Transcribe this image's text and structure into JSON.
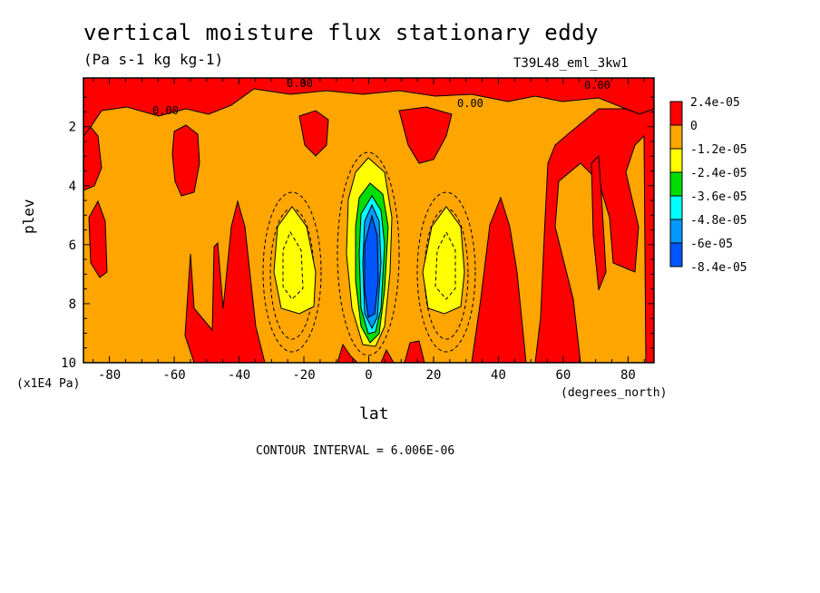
{
  "chart_data": {
    "type": "heatmap",
    "title": "vertical moisture flux stationary eddy",
    "units_label": "(Pa s-1 kg kg-1)",
    "run_label": "T39L48_eml_3kw1",
    "xlabel": "lat",
    "x_unit_label": "(degrees_north)",
    "ylabel": "plev",
    "y_unit_label": "(x1E4 Pa)",
    "xlim": [
      -88,
      88
    ],
    "ylim": [
      10,
      0.35
    ],
    "x_ticks": [
      -80,
      -60,
      -40,
      -20,
      0,
      20,
      40,
      60,
      80
    ],
    "x_tick_labels": [
      "-80",
      "-60",
      "-40",
      "-20",
      "0",
      "20",
      "40",
      "60",
      "80"
    ],
    "y_ticks": [
      2,
      4,
      6,
      8,
      10
    ],
    "y_tick_labels": [
      "2",
      "4",
      "6",
      "8",
      "10"
    ],
    "contour_interval_text": "CONTOUR INTERVAL = 6.006E-06",
    "colorbar": {
      "levels": [
        "2.4e-05",
        "0",
        "-1.2e-05",
        "-2.4e-05",
        "-3.6e-05",
        "-4.8e-05",
        "-6e-05",
        "-8.4e-05"
      ],
      "colors": [
        "#ff0000",
        "#ffa500",
        "#ffff00",
        "#00dd00",
        "#00ffff",
        "#0099ff",
        "#0055ff"
      ]
    },
    "zero_contour_label": "0.00",
    "regions": {
      "positive": [
        {
          "lat_range": [
            -88,
            88
          ],
          "plev_range": [
            0.35,
            1.3
          ],
          "note": "top band"
        },
        {
          "lat_range": [
            -65,
            -58
          ],
          "plev_range": [
            1.8,
            4.1
          ]
        },
        {
          "lat_range": [
            -88,
            -80
          ],
          "plev_range": [
            4.4,
            7.2
          ]
        },
        {
          "lat_range": [
            -57,
            -55
          ],
          "plev_range": [
            6.0,
            9.2
          ]
        },
        {
          "lat_range": [
            -46,
            -38
          ],
          "plev_range": [
            4.2,
            10
          ]
        },
        {
          "lat_range": [
            -25,
            -18
          ],
          "plev_range": [
            1.2,
            3.2
          ]
        },
        {
          "lat_range": [
            13,
            22
          ],
          "plev_range": [
            1.2,
            3.2
          ]
        },
        {
          "lat_range": [
            37,
            47
          ],
          "plev_range": [
            4.0,
            10
          ]
        },
        {
          "lat_range": [
            55,
            88
          ],
          "plev_range": [
            1.3,
            10
          ]
        }
      ],
      "negative_cores": [
        {
          "lat": -25,
          "plev": 6.5,
          "min": "-1.8e-05"
        },
        {
          "lat": 22,
          "plev": 6.5,
          "min": "-1.8e-05"
        },
        {
          "lat": 0,
          "plev": 6.5,
          "min": "-8.4e-05"
        }
      ]
    }
  }
}
